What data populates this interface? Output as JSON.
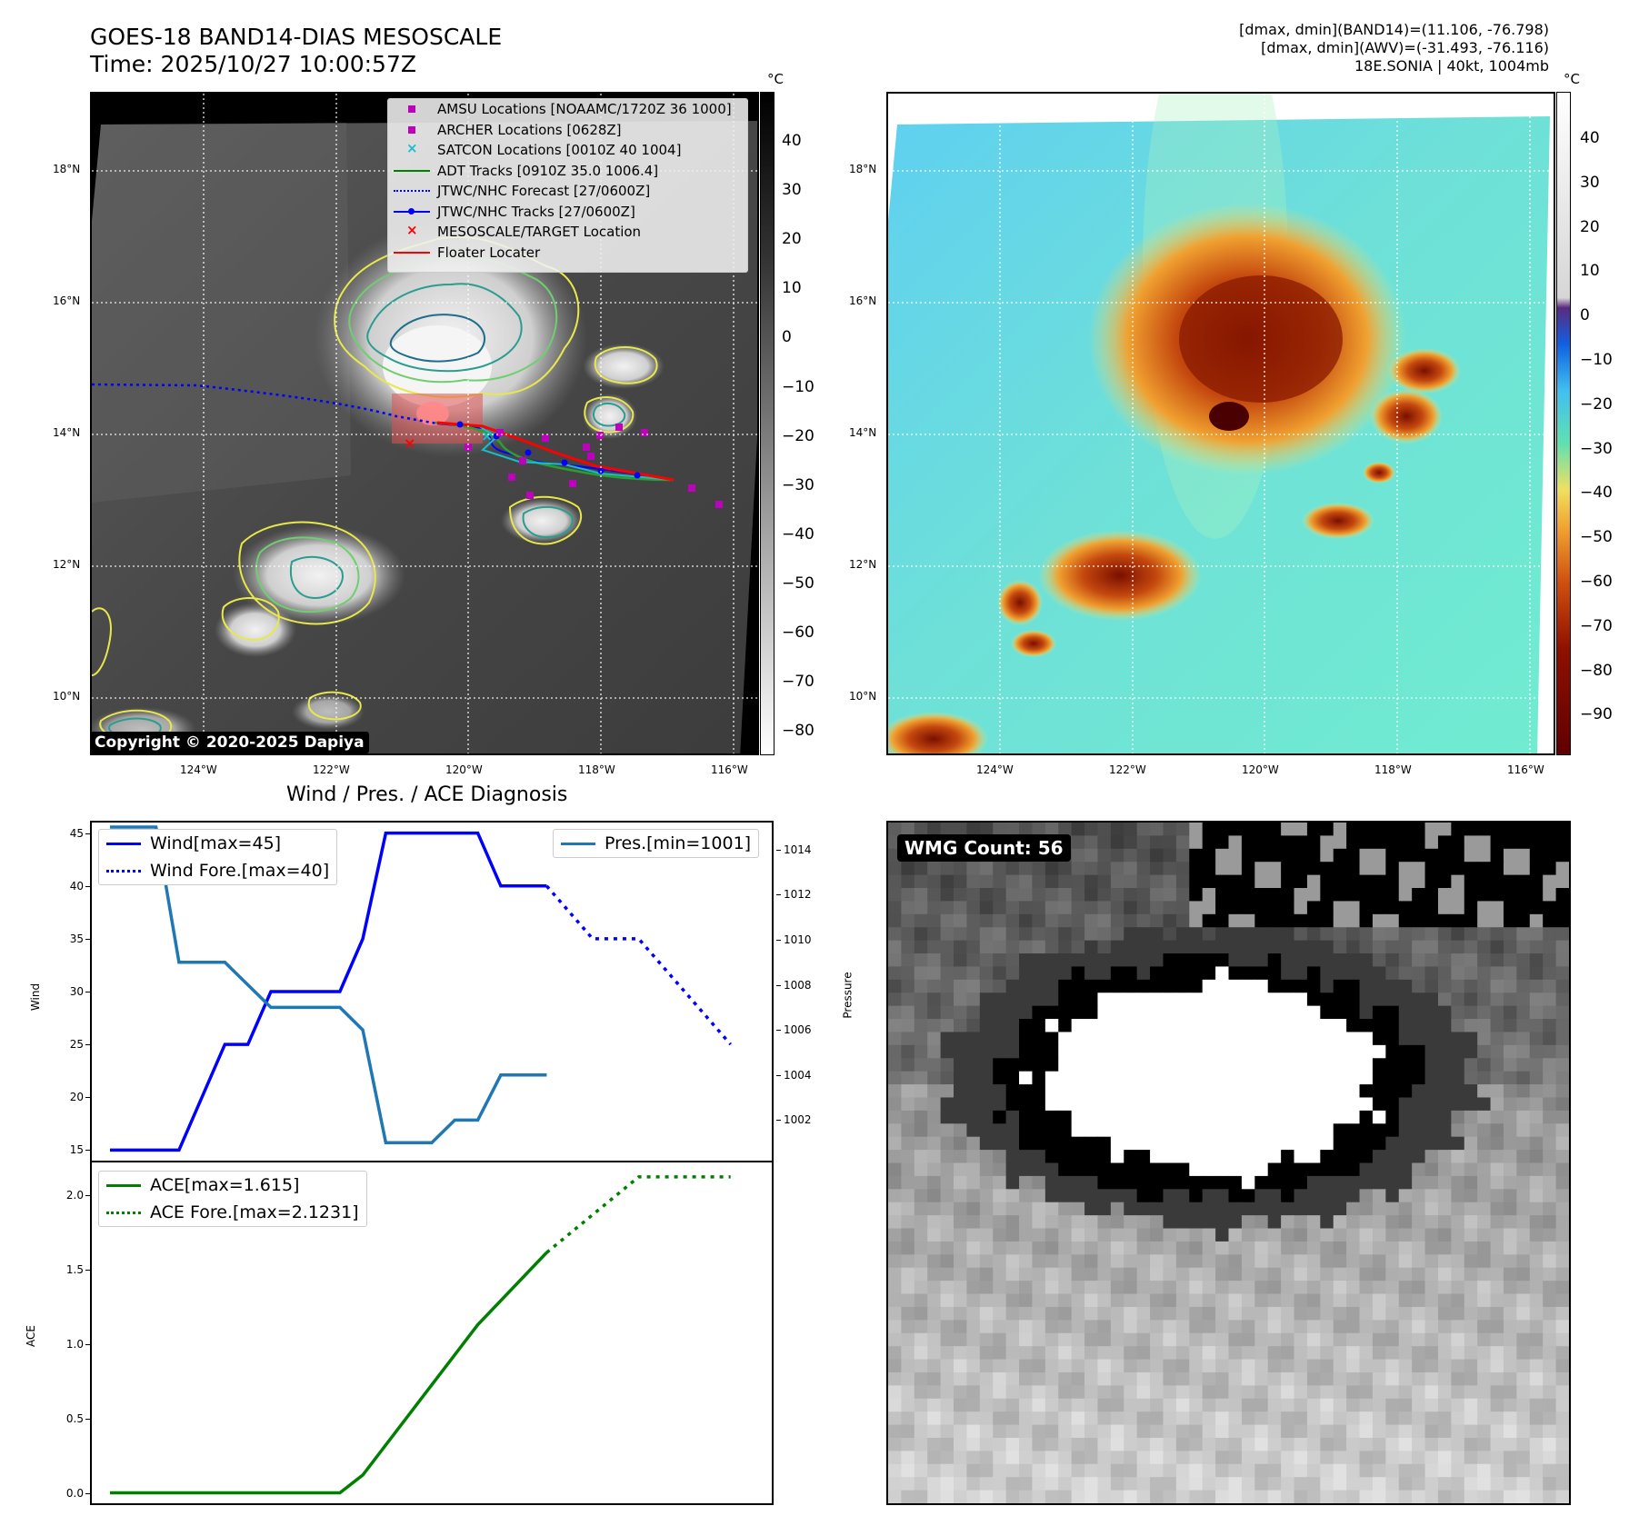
{
  "header": {
    "title_line1": "GOES-18 BAND14-DIAS MESOSCALE",
    "title_line2": "Time: 2025/10/27 10:00:57Z",
    "right_line1": "[dmax, dmin](BAND14)=(11.106, -76.798)",
    "right_line2": "[dmax, dmin](AWV)=(-31.493, -76.116)",
    "right_line3": "18E.SONIA | 40kt, 1004mb"
  },
  "map_axes": {
    "lat_labels": [
      "18°N",
      "16°N",
      "14°N",
      "12°N",
      "10°N"
    ],
    "lon_labels": [
      "124°W",
      "122°W",
      "120°W",
      "118°W",
      "116°W"
    ]
  },
  "colorbar_ir": {
    "unit": "°C",
    "ticks": [
      "40",
      "30",
      "20",
      "10",
      "0",
      "−10",
      "−20",
      "−30",
      "−40",
      "−50",
      "−60",
      "−70",
      "−80"
    ]
  },
  "colorbar_color": {
    "unit": "°C",
    "ticks": [
      "40",
      "30",
      "20",
      "10",
      "0",
      "−10",
      "−20",
      "−30",
      "−40",
      "−50",
      "−60",
      "−70",
      "−80",
      "−90"
    ]
  },
  "legend": {
    "items": [
      {
        "label": "AMSU Locations [NOAAMC/1720Z 36 1000]",
        "symbol": "square",
        "color": "#bf00bf"
      },
      {
        "label": "ARCHER Locations [0628Z]",
        "symbol": "square",
        "color": "#bf00bf"
      },
      {
        "label": "SATCON Locations [0010Z 40 1004]",
        "symbol": "x",
        "color": "#17becf"
      },
      {
        "label": "ADT Tracks [0910Z 35.0 1006.4]",
        "symbol": "line",
        "color": "#008000"
      },
      {
        "label": "JTWC/NHC Forecast [27/0600Z]",
        "symbol": "dotted",
        "color": "#0000ff"
      },
      {
        "label": "JTWC/NHC Tracks [27/0600Z]",
        "symbol": "line-dot",
        "color": "#0000ff"
      },
      {
        "label": "MESOSCALE/TARGET Location",
        "symbol": "x",
        "color": "#ff0000"
      },
      {
        "label": "Floater Locater",
        "symbol": "line",
        "color": "#ff0000"
      }
    ]
  },
  "copyright": "Copyright © 2020-2025 Dapiya",
  "wmg_count": "WMG Count: 56",
  "diag": {
    "title": "Wind / Pres. / ACE Diagnosis",
    "wind_label": "Wind",
    "pressure_label": "Pressure",
    "ace_label": "ACE",
    "legend_wind": "Wind[max=45]",
    "legend_wind_fore": "Wind Fore.[max=40]",
    "legend_pres": "Pres.[min=1001]",
    "legend_ace": "ACE[max=1.615]",
    "legend_ace_fore": "ACE Fore.[max=2.1231]"
  },
  "chart_data": [
    {
      "type": "line",
      "title": "Wind / Pres. / ACE Diagnosis",
      "ylabel": "Wind",
      "ylim": [
        14,
        46
      ],
      "yticks": [
        15,
        20,
        25,
        30,
        35,
        40,
        45
      ],
      "xlim": [
        0,
        28
      ],
      "series": [
        {
          "name": "Wind[max=45]",
          "color": "#0000ff",
          "style": "solid",
          "x": [
            0,
            3,
            5,
            6,
            7,
            8,
            9,
            10,
            11,
            12,
            13,
            14,
            15,
            16,
            17,
            18,
            19
          ],
          "values": [
            15,
            15,
            25,
            25,
            30,
            30,
            30,
            30,
            35,
            45,
            45,
            45,
            45,
            45,
            40,
            40,
            40
          ]
        },
        {
          "name": "Wind Fore.[max=40]",
          "color": "#0000ff",
          "style": "dotted",
          "x": [
            19,
            21,
            23,
            27
          ],
          "values": [
            40,
            35,
            35,
            25
          ]
        }
      ]
    },
    {
      "type": "line",
      "ylabel": "Pressure",
      "ylim": [
        1000.2,
        1015.2
      ],
      "yticks": [
        1002,
        1004,
        1006,
        1008,
        1010,
        1012,
        1014
      ],
      "xlim": [
        0,
        28
      ],
      "series": [
        {
          "name": "Pres.[min=1001]",
          "color": "#1f77b4",
          "style": "solid",
          "x": [
            0,
            2,
            3,
            5,
            7,
            8,
            9,
            10,
            11,
            12,
            13,
            14,
            15,
            16,
            17,
            18,
            19
          ],
          "values": [
            1015,
            1015,
            1009,
            1009,
            1007,
            1007,
            1007,
            1007,
            1006,
            1001,
            1001,
            1001,
            1002,
            1002,
            1004,
            1004,
            1004
          ]
        }
      ]
    },
    {
      "type": "line",
      "ylabel": "ACE",
      "ylim": [
        -0.07,
        2.22
      ],
      "yticks": [
        0.0,
        0.5,
        1.0,
        1.5,
        2.0
      ],
      "xlim": [
        0,
        28
      ],
      "series": [
        {
          "name": "ACE[max=1.615]",
          "color": "#008000",
          "style": "solid",
          "x": [
            0,
            10,
            11,
            16,
            19
          ],
          "values": [
            0,
            0,
            0.12,
            1.13,
            1.615
          ]
        },
        {
          "name": "ACE Fore.[max=2.1231]",
          "color": "#008000",
          "style": "dotted",
          "x": [
            19,
            23,
            27
          ],
          "values": [
            1.615,
            2.1231,
            2.1231
          ]
        }
      ]
    }
  ]
}
